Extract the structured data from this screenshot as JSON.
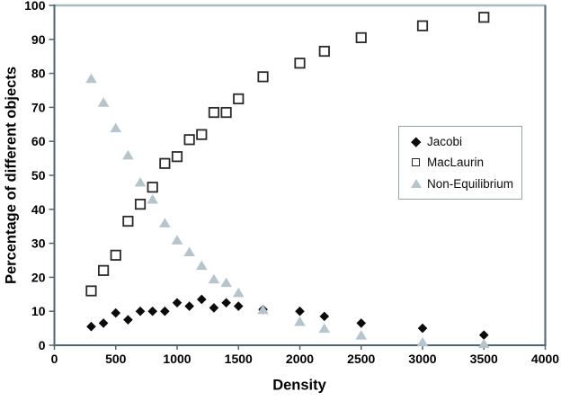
{
  "chart_data": {
    "type": "scatter",
    "title": "",
    "xlabel": "Density",
    "ylabel": "Percentage of different objects",
    "xlim": [
      0,
      4000
    ],
    "ylim": [
      0,
      100
    ],
    "x_tick_values": [
      0,
      500,
      1000,
      1500,
      2000,
      2500,
      3000,
      3500,
      4000
    ],
    "x_tick_labels": [
      "0",
      "500",
      "1000",
      "1500",
      "2000",
      "2500",
      "3000",
      "3500",
      "4000"
    ],
    "y_tick_values": [
      0,
      10,
      20,
      30,
      40,
      50,
      60,
      70,
      80,
      90,
      100
    ],
    "y_tick_labels": [
      "0",
      "10",
      "20",
      "30",
      "40",
      "50",
      "60",
      "70",
      "80",
      "90",
      "100"
    ],
    "grid": false,
    "legend_position": "middle-right",
    "x": [
      300,
      400,
      500,
      600,
      700,
      800,
      900,
      1000,
      1100,
      1200,
      1300,
      1400,
      1500,
      1700,
      2000,
      2200,
      2500,
      3000,
      3500
    ],
    "series": [
      {
        "name": "Jacobi",
        "marker": "diamond",
        "color": "#0b0b0b",
        "values": [
          5.5,
          6.5,
          9.5,
          7.5,
          10,
          10,
          10,
          12.5,
          11.5,
          13.5,
          11,
          12.5,
          11.5,
          10.5,
          10,
          8.5,
          6.5,
          5,
          3
        ]
      },
      {
        "name": "MacLaurin",
        "marker": "open-square",
        "color": "#2a2a2a",
        "fill": "#ffffff",
        "values": [
          16,
          22,
          26.5,
          36.5,
          41.5,
          46.5,
          53.5,
          55.5,
          60.5,
          62,
          68.5,
          68.5,
          72.5,
          79,
          83,
          86.5,
          90.5,
          94,
          96.5
        ]
      },
      {
        "name": "Non-Equilibrium",
        "marker": "triangle",
        "color": "#b6c4cb",
        "values": [
          78.5,
          71.5,
          64,
          56,
          48,
          43,
          36,
          31,
          27.5,
          23.5,
          19.5,
          18.5,
          15.5,
          10.5,
          7,
          5,
          3,
          1,
          0.5
        ]
      }
    ],
    "axis_colors": {
      "left": "#4f6570",
      "bottom": "#4f6570",
      "right": "#5d7078",
      "top": "#aab9c0"
    },
    "tick_label_color": "#000000",
    "legend_border_color": "#9aa2a6"
  }
}
